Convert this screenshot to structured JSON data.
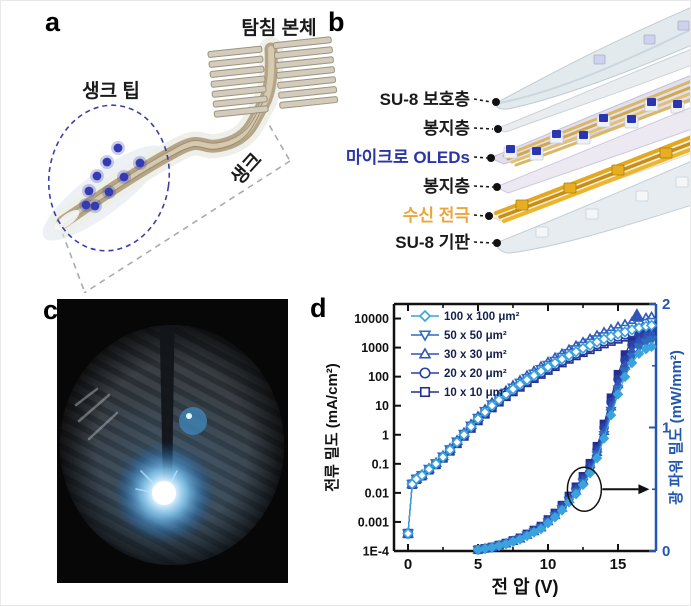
{
  "figure": {
    "panels": {
      "a": {
        "label": "a",
        "labels": {
          "probe_body": "탐침 본체",
          "shank_tip": "생크 팁",
          "shank": "생크"
        }
      },
      "b": {
        "label": "b",
        "layers": [
          {
            "label": "SU-8 보호층",
            "color": "#1a1a1a"
          },
          {
            "label": "봉지층",
            "color": "#1a1a1a"
          },
          {
            "label": "마이크로 OLEDs",
            "color": "#2b35a8"
          },
          {
            "label": "봉지층",
            "color": "#1a1a1a"
          },
          {
            "label": "수신 전극",
            "color": "#e9a63b"
          },
          {
            "label": "SU-8 기판",
            "color": "#1a1a1a"
          }
        ]
      },
      "c": {
        "label": "c"
      },
      "d": {
        "label": "d"
      }
    }
  },
  "chart_data": {
    "type": "line",
    "title": "",
    "xlabel": "전 압 (V)",
    "xlim": [
      -1,
      17.7
    ],
    "x_ticks": [
      0,
      5,
      10,
      15
    ],
    "x_minor_ticks": [
      2.5,
      7.5,
      12.5
    ],
    "grid": false,
    "legend_position": "top-left",
    "left_axis": {
      "label": "전류 밀도 (mA/cm²)",
      "scale": "log",
      "ticks": [
        "1E-4",
        "0.001",
        "0.01",
        "0.1",
        "1",
        "10",
        "100",
        "1000",
        "10000"
      ],
      "color": "#111111"
    },
    "right_axis": {
      "label": "광 파워 밀도 (mW/mm²)",
      "scale": "linear",
      "lim": [
        0,
        2
      ],
      "ticks": [
        0,
        1,
        2
      ],
      "minor_ticks": [
        0.5,
        1.5
      ],
      "color": "#2157b0"
    },
    "series": [
      {
        "name": "100 x 100 μm²",
        "marker": "diamond",
        "color": "#3aa2dc"
      },
      {
        "name": "50 x 50 μm²",
        "marker": "triangle-down",
        "color": "#2e6cc0"
      },
      {
        "name": "30 x 30 μm²",
        "marker": "triangle-up",
        "color": "#2f55b8"
      },
      {
        "name": "20 x 20 μm²",
        "marker": "circle",
        "color": "#2a3fa4"
      },
      {
        "name": "10 x 10 μm²",
        "marker": "square",
        "color": "#222f8e"
      }
    ],
    "voltage_V": [
      0,
      0.3,
      0.6,
      1,
      1.5,
      2,
      2.5,
      3,
      3.5,
      4,
      4.5,
      5,
      5.5,
      6,
      6.5,
      7,
      7.5,
      8,
      8.5,
      9,
      9.5,
      10,
      10.5,
      11,
      11.5,
      12,
      12.5,
      13,
      13.5,
      14,
      14.5,
      15,
      15.5,
      16,
      16.5,
      17,
      17.4
    ],
    "current_density_mA_cm2": [
      0.0004,
      0.02,
      0.03,
      0.04,
      0.065,
      0.1,
      0.17,
      0.3,
      0.55,
      1.0,
      1.9,
      3.5,
      6,
      10,
      16,
      25,
      37,
      54,
      78,
      110,
      155,
      215,
      295,
      400,
      540,
      720,
      940,
      1200,
      1550,
      1950,
      2400,
      2900,
      3450,
      4100,
      4800,
      5400,
      5800
    ],
    "power_density_mW_mm2": [
      null,
      null,
      null,
      null,
      null,
      null,
      null,
      null,
      null,
      null,
      null,
      0.01,
      0.02,
      0.03,
      0.045,
      0.06,
      0.08,
      0.1,
      0.13,
      0.16,
      0.19,
      0.24,
      0.29,
      0.35,
      0.42,
      0.49,
      0.57,
      0.67,
      0.8,
      0.97,
      1.17,
      1.35,
      1.5,
      1.62,
      1.7,
      1.74,
      1.76
    ],
    "outliers": [
      {
        "series_index": 2,
        "axis": "left",
        "voltage_V": 16.35,
        "value": 12500
      }
    ],
    "annotation": {
      "shape": "ellipse",
      "voltage_V": 12.6,
      "power_mW_mm2": 0.5,
      "arrow": "points-right-to-power-axis"
    }
  }
}
